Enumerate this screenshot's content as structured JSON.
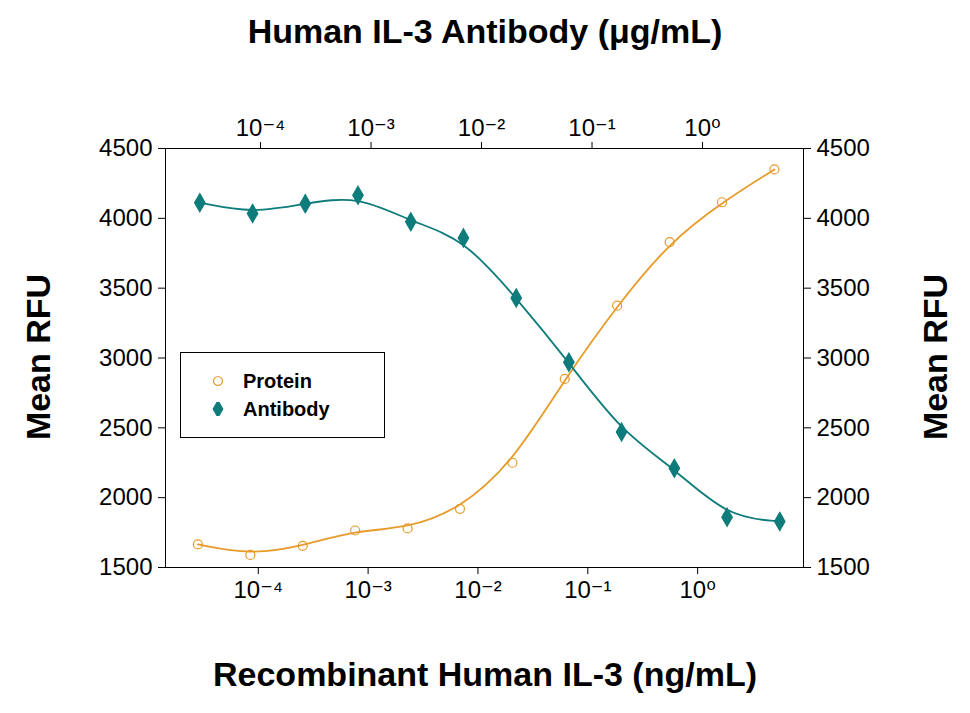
{
  "chart_data": {
    "type": "scatter",
    "x_label": "Recombinant Human IL-3 (ng/mL)",
    "x2_label": "Human IL-3 Antibody (μg/mL)",
    "y_label": "Mean RFU",
    "y2_label": "Mean RFU",
    "log": "x",
    "legend": "left",
    "xlim": [
      1.43e-05,
      9.2
    ],
    "xticks": [
      {
        "value": 0.0001,
        "label": "10⁻⁴"
      },
      {
        "value": 0.001,
        "label": "10⁻³"
      },
      {
        "value": 0.01,
        "label": "10⁻²"
      },
      {
        "value": 0.1,
        "label": "10⁻¹"
      },
      {
        "value": 1,
        "label": "10⁰"
      }
    ],
    "x2lim": [
      1.38e-05,
      8.2
    ],
    "x2ticks": [
      {
        "value": 0.0001,
        "label": "10⁻⁴"
      },
      {
        "value": 0.001,
        "label": "10⁻³"
      },
      {
        "value": 0.01,
        "label": "10⁻²"
      },
      {
        "value": 0.1,
        "label": "10⁻¹"
      },
      {
        "value": 1,
        "label": "10⁰"
      }
    ],
    "ylim": [
      1500,
      4500
    ],
    "yticks": [
      1500,
      2000,
      2500,
      3000,
      3500,
      4000,
      4500
    ],
    "y2lim": [
      1500,
      4500
    ],
    "y2ticks": [
      1500,
      2000,
      2500,
      3000,
      3500,
      4000,
      4500
    ],
    "series": [
      {
        "name": "Protein",
        "color": "#e69a28",
        "marker": "open-circle",
        "line_style": "solid",
        "x": [
          2.82e-05,
          8.47e-05,
          0.000254,
          0.000762,
          0.00229,
          0.00686,
          0.0206,
          0.0617,
          0.185,
          0.556,
          1.667,
          5
        ],
        "values": [
          1665,
          1590,
          1655,
          1765,
          1780,
          1920,
          2250,
          2850,
          3375,
          3830,
          4115,
          4350
        ]
      },
      {
        "name": "Antibody",
        "color": "#0e7c7b",
        "marker": "diamond",
        "line_style": "solid",
        "axis": "y2",
        "x": [
          2.82e-05,
          8.47e-05,
          0.000254,
          0.000762,
          0.00229,
          0.00686,
          0.0206,
          0.0617,
          0.185,
          0.556,
          1.667,
          5
        ],
        "values": [
          4112,
          4035,
          4105,
          4165,
          3975,
          3860,
          3430,
          2970,
          2470,
          2210,
          1860,
          1830
        ]
      }
    ]
  }
}
